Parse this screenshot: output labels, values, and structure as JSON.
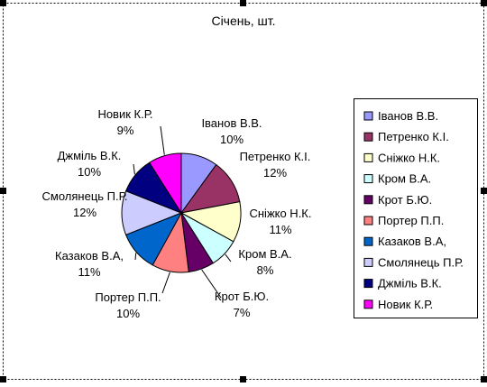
{
  "chart_data": {
    "type": "pie",
    "title": "Січень, шт.",
    "legend_position": "right",
    "slices": [
      {
        "name": "Іванов В.В.",
        "value": 10,
        "label": "10%",
        "color": "#9999ff"
      },
      {
        "name": "Петренко К.І.",
        "value": 12,
        "label": "12%",
        "color": "#993366"
      },
      {
        "name": "Сніжко Н.К.",
        "value": 11,
        "label": "11%",
        "color": "#ffffcc"
      },
      {
        "name": "Кром В.А.",
        "value": 8,
        "label": "8%",
        "color": "#ccffff"
      },
      {
        "name": "Крот Б.Ю.",
        "value": 7,
        "label": "7%",
        "color": "#660066"
      },
      {
        "name": "Портер П.П.",
        "value": 10,
        "label": "10%",
        "color": "#ff8080"
      },
      {
        "name": "Казаков В.А,",
        "value": 11,
        "label": "11%",
        "color": "#0066cc"
      },
      {
        "name": "Смолянець П.Р.",
        "value": 12,
        "label": "12%",
        "color": "#ccccff"
      },
      {
        "name": "Джміль В.К.",
        "value": 10,
        "label": "10%",
        "color": "#000080"
      },
      {
        "name": "Новик К.Р.",
        "value": 9,
        "label": "9%",
        "color": "#ff00ff"
      }
    ]
  }
}
